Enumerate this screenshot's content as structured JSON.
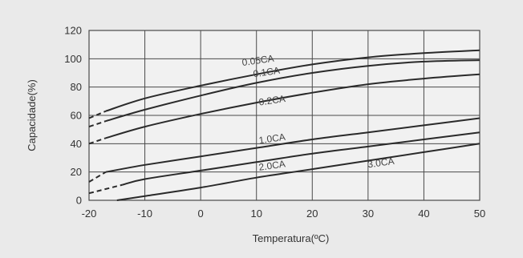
{
  "chart_data": {
    "type": "line",
    "title": "",
    "xlabel": "Temperatura(ºC)",
    "ylabel": "Capacidade(%)",
    "xlim": [
      -20,
      50
    ],
    "ylim": [
      0,
      120
    ],
    "xticks": [
      -20,
      -10,
      0,
      10,
      20,
      30,
      40,
      50
    ],
    "yticks": [
      0,
      20,
      40,
      60,
      80,
      100,
      120
    ],
    "grid": true,
    "legend": "none",
    "line_color": "#2a2a2a",
    "grid_color": "#4a4a4a",
    "background": "#f1f1f1",
    "series": [
      {
        "name": "0.05CA",
        "dashed_below": -17,
        "x": [
          -20,
          -17,
          -10,
          0,
          10,
          20,
          30,
          40,
          50
        ],
        "y": [
          58,
          63,
          72,
          81,
          89,
          96,
          101,
          104,
          106
        ]
      },
      {
        "name": "0.1CA",
        "dashed_below": -17,
        "x": [
          -20,
          -17,
          -10,
          0,
          10,
          20,
          30,
          40,
          50
        ],
        "y": [
          52,
          56,
          64,
          74,
          83,
          90,
          95,
          98,
          99
        ]
      },
      {
        "name": "0.2CA",
        "dashed_below": -17,
        "x": [
          -20,
          -17,
          -10,
          0,
          10,
          20,
          30,
          40,
          50
        ],
        "y": [
          40,
          44,
          52,
          61,
          69,
          76,
          82,
          86,
          89
        ]
      },
      {
        "name": "1.0CA",
        "dashed_below": -17,
        "x": [
          -20,
          -17,
          -10,
          0,
          10,
          20,
          30,
          40,
          50
        ],
        "y": [
          13,
          20,
          25,
          31,
          37,
          43,
          48,
          53,
          58
        ]
      },
      {
        "name": "2.0CA",
        "dashed_below": -14,
        "x": [
          -20,
          -14,
          -10,
          0,
          10,
          20,
          30,
          40,
          50
        ],
        "y": [
          5,
          11,
          15,
          21,
          27,
          33,
          38,
          43,
          48
        ]
      },
      {
        "name": "3.0CA",
        "x": [
          -15,
          -10,
          0,
          10,
          20,
          30,
          40,
          50
        ],
        "y": [
          0,
          3,
          9,
          16,
          22,
          28,
          34,
          40
        ]
      }
    ],
    "annotations": [
      {
        "text": "0.05CA",
        "x": 7.5,
        "y": 95
      },
      {
        "text": "0.1CA",
        "x": 9.5,
        "y": 87
      },
      {
        "text": "0.2CA",
        "x": 10.5,
        "y": 67
      },
      {
        "text": "1.0CA",
        "x": 10.5,
        "y": 40
      },
      {
        "text": "2.0CA",
        "x": 10.5,
        "y": 21
      },
      {
        "text": "3.0CA",
        "x": 30,
        "y": 23
      }
    ]
  }
}
